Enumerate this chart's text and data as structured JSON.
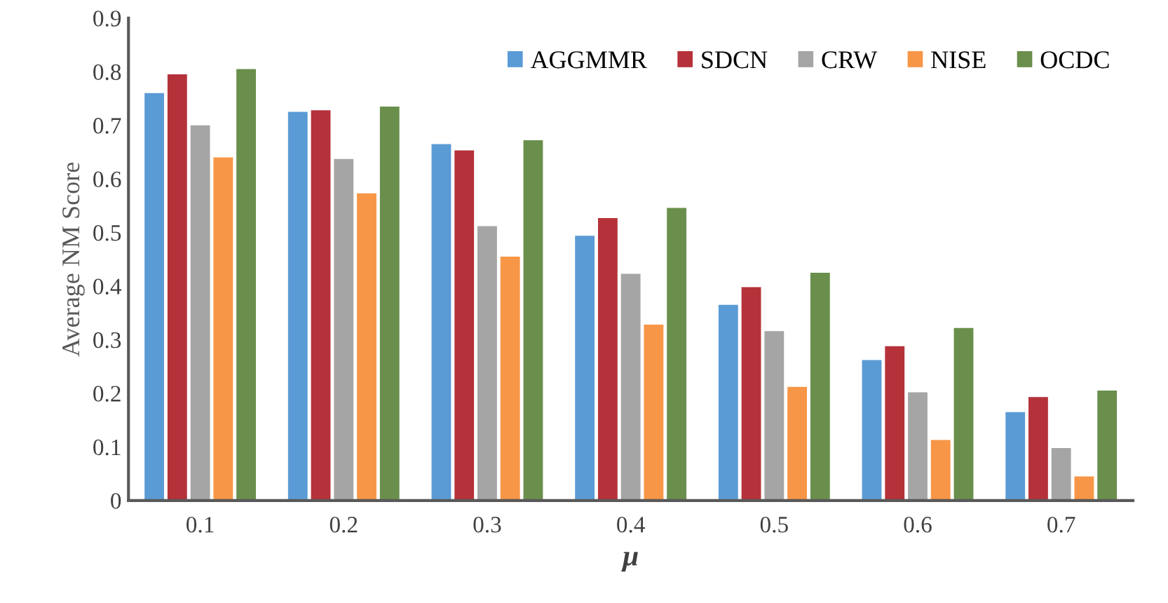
{
  "chart_data": {
    "type": "bar",
    "xlabel": "μ",
    "ylabel": "Average NM Score",
    "categories": [
      "0.1",
      "0.2",
      "0.3",
      "0.4",
      "0.5",
      "0.6",
      "0.7"
    ],
    "series": [
      {
        "name": "AGGMMR",
        "color": "#5b9bd5",
        "values": [
          0.76,
          0.725,
          0.665,
          0.494,
          0.365,
          0.262,
          0.165
        ]
      },
      {
        "name": "SDCN",
        "color": "#b5323a",
        "values": [
          0.795,
          0.728,
          0.653,
          0.527,
          0.398,
          0.288,
          0.193
        ]
      },
      {
        "name": "CRW",
        "color": "#a5a5a5",
        "values": [
          0.7,
          0.637,
          0.512,
          0.423,
          0.316,
          0.202,
          0.098
        ]
      },
      {
        "name": "NISE",
        "color": "#f79646",
        "values": [
          0.64,
          0.573,
          0.455,
          0.328,
          0.212,
          0.113,
          0.045
        ]
      },
      {
        "name": "OCDC",
        "color": "#6a8f4c",
        "values": [
          0.805,
          0.735,
          0.672,
          0.546,
          0.425,
          0.322,
          0.205
        ]
      }
    ],
    "ylim": [
      0,
      0.9
    ],
    "yticks": [
      0,
      0.1,
      0.2,
      0.3,
      0.4,
      0.5,
      0.6,
      0.7,
      0.8,
      0.9
    ],
    "grid": false,
    "legend": "top right"
  }
}
